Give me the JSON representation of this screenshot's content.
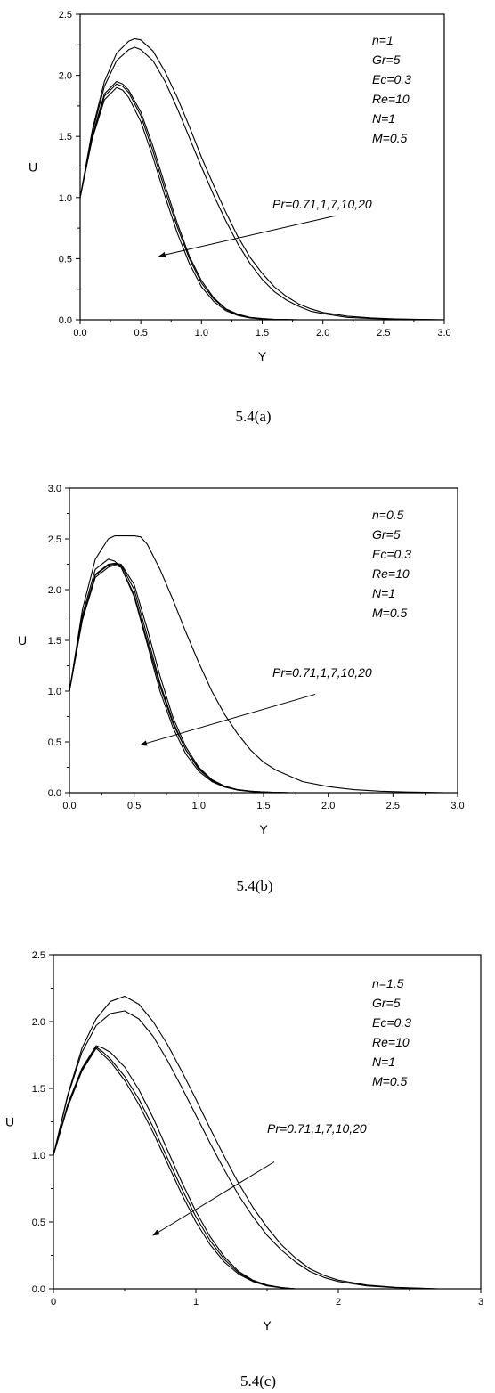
{
  "chart_data": [
    {
      "type": "line",
      "caption": "5.4(a)",
      "xlabel": "Y",
      "ylabel": "U",
      "xlim": [
        0,
        3
      ],
      "ylim": [
        0,
        2.5
      ],
      "xticks": [
        "0.0",
        "0.5",
        "1.0",
        "1.5",
        "2.0",
        "2.5",
        "3.0"
      ],
      "yticks": [
        "0.0",
        "0.5",
        "1.0",
        "1.5",
        "2.0",
        "2.5"
      ],
      "params": [
        "n=1",
        "Gr=5",
        "Ec=0.3",
        "Re=10",
        "N=1",
        "M=0.5"
      ],
      "annotation": "Pr=0.71,1,7,10,20",
      "arrow_from": [
        2.1,
        0.85
      ],
      "arrow_to": [
        0.65,
        0.52
      ],
      "series": [
        {
          "x": [
            0,
            0.1,
            0.2,
            0.3,
            0.4,
            0.45,
            0.5,
            0.6,
            0.7,
            0.8,
            0.9,
            1.0,
            1.1,
            1.2,
            1.3,
            1.4,
            1.5,
            1.6,
            1.7,
            1.8,
            1.9,
            2.0,
            2.2,
            2.4,
            2.6,
            2.8,
            3.0
          ],
          "y": [
            1.0,
            1.55,
            1.95,
            2.18,
            2.28,
            2.3,
            2.29,
            2.2,
            2.03,
            1.82,
            1.58,
            1.33,
            1.1,
            0.88,
            0.68,
            0.51,
            0.38,
            0.27,
            0.19,
            0.13,
            0.09,
            0.06,
            0.03,
            0.015,
            0.007,
            0.003,
            0.0
          ]
        },
        {
          "x": [
            0,
            0.1,
            0.2,
            0.3,
            0.4,
            0.45,
            0.5,
            0.6,
            0.7,
            0.8,
            0.9,
            1.0,
            1.1,
            1.2,
            1.3,
            1.4,
            1.5,
            1.6,
            1.7,
            1.8,
            1.9,
            2.0,
            2.2,
            2.4,
            2.6,
            2.8,
            3.0
          ],
          "y": [
            1.0,
            1.53,
            1.91,
            2.12,
            2.21,
            2.23,
            2.21,
            2.12,
            1.95,
            1.73,
            1.49,
            1.25,
            1.02,
            0.81,
            0.62,
            0.46,
            0.33,
            0.23,
            0.16,
            0.11,
            0.07,
            0.05,
            0.02,
            0.01,
            0.005,
            0.002,
            0.0
          ]
        },
        {
          "x": [
            0,
            0.1,
            0.2,
            0.3,
            0.35,
            0.4,
            0.5,
            0.6,
            0.7,
            0.8,
            0.9,
            1.0,
            1.1,
            1.2,
            1.3,
            1.4,
            1.5,
            1.6,
            1.7,
            1.8
          ],
          "y": [
            1.0,
            1.5,
            1.85,
            1.95,
            1.93,
            1.88,
            1.7,
            1.42,
            1.1,
            0.79,
            0.52,
            0.32,
            0.18,
            0.09,
            0.045,
            0.02,
            0.01,
            0.004,
            0.002,
            0.0
          ]
        },
        {
          "x": [
            0,
            0.1,
            0.2,
            0.3,
            0.35,
            0.4,
            0.5,
            0.6,
            0.7,
            0.8,
            0.9,
            1.0,
            1.1,
            1.2,
            1.3,
            1.4,
            1.5,
            1.6,
            1.7,
            1.8
          ],
          "y": [
            1.0,
            1.49,
            1.83,
            1.93,
            1.91,
            1.86,
            1.67,
            1.38,
            1.06,
            0.76,
            0.5,
            0.3,
            0.17,
            0.085,
            0.04,
            0.018,
            0.008,
            0.003,
            0.001,
            0.0
          ]
        },
        {
          "x": [
            0,
            0.1,
            0.2,
            0.3,
            0.35,
            0.4,
            0.5,
            0.6,
            0.7,
            0.8,
            0.9,
            1.0,
            1.1,
            1.2,
            1.3,
            1.4,
            1.5,
            1.6,
            1.7,
            1.8
          ],
          "y": [
            1.0,
            1.48,
            1.8,
            1.9,
            1.88,
            1.82,
            1.62,
            1.33,
            1.01,
            0.71,
            0.46,
            0.27,
            0.15,
            0.075,
            0.035,
            0.015,
            0.006,
            0.002,
            0.001,
            0.0
          ]
        }
      ]
    },
    {
      "type": "line",
      "caption": "5.4(b)",
      "xlabel": "Y",
      "ylabel": "U",
      "xlim": [
        0,
        3
      ],
      "ylim": [
        0,
        3
      ],
      "xticks": [
        "0.0",
        "0.5",
        "1.0",
        "1.5",
        "2.0",
        "2.5",
        "3.0"
      ],
      "yticks": [
        "0.0",
        "0.5",
        "1.0",
        "1.5",
        "2.0",
        "2.5",
        "3.0"
      ],
      "params": [
        "n=0.5",
        "Gr=5",
        "Ec=0.3",
        "Re=10",
        "N=1",
        "M=0.5"
      ],
      "annotation": "Pr=0.71,1,7,10,20",
      "arrow_from": [
        1.9,
        0.97
      ],
      "arrow_to": [
        0.55,
        0.47
      ],
      "series": [
        {
          "x": [
            0,
            0.1,
            0.2,
            0.3,
            0.35,
            0.4,
            0.5,
            0.55,
            0.6,
            0.7,
            0.8,
            0.9,
            1.0,
            1.1,
            1.2,
            1.3,
            1.4,
            1.5,
            1.6,
            1.8,
            2.0,
            2.2,
            2.4,
            2.6,
            2.8,
            2.9
          ],
          "y": [
            1.0,
            1.8,
            2.3,
            2.5,
            2.53,
            2.53,
            2.53,
            2.52,
            2.45,
            2.2,
            1.9,
            1.58,
            1.28,
            1.0,
            0.77,
            0.58,
            0.42,
            0.3,
            0.22,
            0.11,
            0.06,
            0.03,
            0.015,
            0.007,
            0.003,
            0.0
          ]
        },
        {
          "x": [
            0,
            0.1,
            0.2,
            0.3,
            0.35,
            0.4,
            0.5,
            0.6,
            0.7,
            0.8,
            0.9,
            1.0,
            1.1,
            1.2,
            1.3,
            1.4,
            1.5,
            1.6,
            1.7
          ],
          "y": [
            1.0,
            1.75,
            2.2,
            2.3,
            2.28,
            2.22,
            1.95,
            1.5,
            1.05,
            0.68,
            0.42,
            0.24,
            0.12,
            0.06,
            0.03,
            0.015,
            0.007,
            0.003,
            0.0
          ]
        },
        {
          "x": [
            0,
            0.1,
            0.2,
            0.3,
            0.35,
            0.4,
            0.5,
            0.6,
            0.7,
            0.8,
            0.9,
            1.0,
            1.1,
            1.2,
            1.3,
            1.4,
            1.5,
            1.6,
            1.7
          ],
          "y": [
            1.0,
            1.72,
            2.15,
            2.25,
            2.26,
            2.25,
            2.05,
            1.62,
            1.15,
            0.74,
            0.45,
            0.25,
            0.13,
            0.065,
            0.03,
            0.015,
            0.007,
            0.003,
            0.0
          ]
        },
        {
          "x": [
            0,
            0.1,
            0.2,
            0.3,
            0.35,
            0.4,
            0.5,
            0.6,
            0.7,
            0.8,
            0.9,
            1.0,
            1.1,
            1.2,
            1.3,
            1.4,
            1.5,
            1.6,
            1.7
          ],
          "y": [
            1.0,
            1.71,
            2.14,
            2.24,
            2.25,
            2.24,
            2.0,
            1.55,
            1.08,
            0.7,
            0.42,
            0.23,
            0.12,
            0.06,
            0.028,
            0.013,
            0.006,
            0.002,
            0.0
          ]
        },
        {
          "x": [
            0,
            0.1,
            0.2,
            0.3,
            0.35,
            0.4,
            0.5,
            0.6,
            0.7,
            0.8,
            0.9,
            1.0,
            1.1,
            1.2,
            1.3,
            1.4,
            1.5,
            1.6,
            1.7
          ],
          "y": [
            1.0,
            1.7,
            2.12,
            2.22,
            2.24,
            2.22,
            1.93,
            1.47,
            1.0,
            0.64,
            0.38,
            0.21,
            0.11,
            0.055,
            0.025,
            0.011,
            0.005,
            0.002,
            0.0
          ]
        }
      ]
    },
    {
      "type": "line",
      "caption": "5.4(c)",
      "xlabel": "Y",
      "ylabel": "U",
      "xlim": [
        0,
        3
      ],
      "ylim": [
        0,
        2.5
      ],
      "xticks": [
        "0",
        "1",
        "2",
        "3"
      ],
      "yticks": [
        "0.0",
        "0.5",
        "1.0",
        "1.5",
        "2.0",
        "2.5"
      ],
      "params": [
        "n=1.5",
        "Gr=5",
        "Ec=0.3",
        "Re=10",
        "N=1",
        "M=0.5"
      ],
      "annotation": "Pr=0.71,1,7,10,20",
      "arrow_from": [
        1.55,
        0.95
      ],
      "arrow_to": [
        0.7,
        0.4
      ],
      "series": [
        {
          "x": [
            0,
            0.1,
            0.2,
            0.3,
            0.4,
            0.5,
            0.6,
            0.7,
            0.8,
            0.9,
            1.0,
            1.1,
            1.2,
            1.3,
            1.4,
            1.5,
            1.6,
            1.7,
            1.8,
            1.9,
            2.0,
            2.2,
            2.4,
            2.6,
            2.7
          ],
          "y": [
            1.0,
            1.45,
            1.8,
            2.02,
            2.15,
            2.19,
            2.13,
            2.0,
            1.83,
            1.63,
            1.42,
            1.2,
            0.99,
            0.79,
            0.61,
            0.46,
            0.33,
            0.23,
            0.15,
            0.1,
            0.065,
            0.028,
            0.011,
            0.004,
            0.0
          ]
        },
        {
          "x": [
            0,
            0.1,
            0.2,
            0.3,
            0.4,
            0.5,
            0.6,
            0.7,
            0.8,
            0.9,
            1.0,
            1.1,
            1.2,
            1.3,
            1.4,
            1.5,
            1.6,
            1.7,
            1.8,
            1.9,
            2.0,
            2.2,
            2.4,
            2.6,
            2.7
          ],
          "y": [
            1.0,
            1.44,
            1.77,
            1.97,
            2.06,
            2.08,
            2.02,
            1.89,
            1.71,
            1.51,
            1.3,
            1.09,
            0.89,
            0.7,
            0.54,
            0.4,
            0.29,
            0.2,
            0.13,
            0.085,
            0.055,
            0.022,
            0.009,
            0.003,
            0.0
          ]
        },
        {
          "x": [
            0,
            0.1,
            0.2,
            0.3,
            0.35,
            0.4,
            0.5,
            0.6,
            0.7,
            0.8,
            0.9,
            1.0,
            1.1,
            1.2,
            1.3,
            1.4,
            1.5,
            1.6,
            1.7
          ],
          "y": [
            1.0,
            1.38,
            1.65,
            1.82,
            1.8,
            1.77,
            1.66,
            1.49,
            1.28,
            1.04,
            0.8,
            0.58,
            0.39,
            0.24,
            0.13,
            0.065,
            0.028,
            0.01,
            0.0
          ]
        },
        {
          "x": [
            0,
            0.1,
            0.2,
            0.3,
            0.35,
            0.4,
            0.5,
            0.6,
            0.7,
            0.8,
            0.9,
            1.0,
            1.1,
            1.2,
            1.3,
            1.4,
            1.5,
            1.6,
            1.7
          ],
          "y": [
            1.0,
            1.37,
            1.64,
            1.81,
            1.77,
            1.72,
            1.59,
            1.42,
            1.21,
            0.98,
            0.75,
            0.54,
            0.36,
            0.22,
            0.12,
            0.06,
            0.025,
            0.009,
            0.0
          ]
        },
        {
          "x": [
            0,
            0.1,
            0.2,
            0.3,
            0.35,
            0.4,
            0.5,
            0.6,
            0.7,
            0.8,
            0.9,
            1.0,
            1.1,
            1.2,
            1.3,
            1.4,
            1.5,
            1.6,
            1.7
          ],
          "y": [
            1.0,
            1.36,
            1.63,
            1.8,
            1.75,
            1.7,
            1.56,
            1.38,
            1.17,
            0.94,
            0.71,
            0.5,
            0.33,
            0.2,
            0.11,
            0.055,
            0.022,
            0.008,
            0.0
          ]
        }
      ]
    }
  ]
}
